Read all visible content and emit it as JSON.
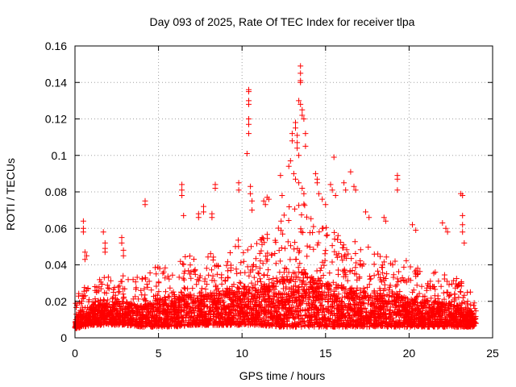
{
  "chart_data": {
    "type": "scatter",
    "title": "Day 093 of 2025, Rate Of TEC Index for receiver tlpa",
    "xlabel": "GPS time / hours",
    "ylabel": "ROTI / TECUs",
    "xlim": [
      0,
      25
    ],
    "ylim": [
      0,
      0.16
    ],
    "x_ticks": [
      0,
      5,
      10,
      15,
      20,
      25
    ],
    "y_ticks": [
      0,
      0.02,
      0.04,
      0.06,
      0.08,
      0.1,
      0.12,
      0.14,
      0.16
    ],
    "x_tick_labels": [
      "0",
      "5",
      "10",
      "15",
      "20",
      "25"
    ],
    "y_tick_labels": [
      "0",
      "0.02",
      "0.04",
      "0.06",
      "0.08",
      "0.1",
      "0.12",
      "0.14",
      "0.16"
    ],
    "grid": true,
    "marker": "+",
    "color": "#ff0000",
    "series": [
      {
        "name": "ROTI",
        "points": [
          [
            0.5,
            0.064
          ],
          [
            0.5,
            0.06
          ],
          [
            0.5,
            0.058
          ],
          [
            0.6,
            0.047
          ],
          [
            0.6,
            0.043
          ],
          [
            0.7,
            0.045
          ],
          [
            1.7,
            0.058
          ],
          [
            1.8,
            0.052
          ],
          [
            1.8,
            0.049
          ],
          [
            1.8,
            0.047
          ],
          [
            2.8,
            0.055
          ],
          [
            2.8,
            0.052
          ],
          [
            2.9,
            0.048
          ],
          [
            2.9,
            0.045
          ],
          [
            4.2,
            0.075
          ],
          [
            4.2,
            0.073
          ],
          [
            6.4,
            0.084
          ],
          [
            6.4,
            0.081
          ],
          [
            6.4,
            0.078
          ],
          [
            6.5,
            0.067
          ],
          [
            7.4,
            0.068
          ],
          [
            7.4,
            0.066
          ],
          [
            7.7,
            0.072
          ],
          [
            7.7,
            0.069
          ],
          [
            8.2,
            0.068
          ],
          [
            8.2,
            0.066
          ],
          [
            8.4,
            0.084
          ],
          [
            8.4,
            0.082
          ],
          [
            9.8,
            0.085
          ],
          [
            9.8,
            0.081
          ],
          [
            10.3,
            0.101
          ],
          [
            10.4,
            0.136
          ],
          [
            10.4,
            0.135
          ],
          [
            10.4,
            0.13
          ],
          [
            10.4,
            0.128
          ],
          [
            10.4,
            0.12
          ],
          [
            10.4,
            0.117
          ],
          [
            10.4,
            0.112
          ],
          [
            10.5,
            0.083
          ],
          [
            10.5,
            0.079
          ],
          [
            10.6,
            0.075
          ],
          [
            10.6,
            0.07
          ],
          [
            11.3,
            0.075
          ],
          [
            11.4,
            0.073
          ],
          [
            11.5,
            0.077
          ],
          [
            11.6,
            0.076
          ],
          [
            12.3,
            0.089
          ],
          [
            12.4,
            0.078
          ],
          [
            12.8,
            0.094
          ],
          [
            12.9,
            0.097
          ],
          [
            13.0,
            0.108
          ],
          [
            13.0,
            0.112
          ],
          [
            13.2,
            0.118
          ],
          [
            13.2,
            0.115
          ],
          [
            13.3,
            0.111
          ],
          [
            13.3,
            0.107
          ],
          [
            13.3,
            0.104
          ],
          [
            13.4,
            0.1
          ],
          [
            13.4,
            0.13
          ],
          [
            13.5,
            0.128
          ],
          [
            13.5,
            0.149
          ],
          [
            13.5,
            0.145
          ],
          [
            13.5,
            0.141
          ],
          [
            13.5,
            0.14
          ],
          [
            13.6,
            0.125
          ],
          [
            13.6,
            0.122
          ],
          [
            13.7,
            0.12
          ],
          [
            13.8,
            0.112
          ],
          [
            13.8,
            0.105
          ],
          [
            13.1,
            0.09
          ],
          [
            13.2,
            0.087
          ],
          [
            13.4,
            0.085
          ],
          [
            13.6,
            0.082
          ],
          [
            13.7,
            0.079
          ],
          [
            14.4,
            0.09
          ],
          [
            14.5,
            0.087
          ],
          [
            14.5,
            0.085
          ],
          [
            14.6,
            0.079
          ],
          [
            14.8,
            0.076
          ],
          [
            15.0,
            0.073
          ],
          [
            15.3,
            0.084
          ],
          [
            15.4,
            0.081
          ],
          [
            15.5,
            0.099
          ],
          [
            15.6,
            0.078
          ],
          [
            16.1,
            0.085
          ],
          [
            16.2,
            0.081
          ],
          [
            16.5,
            0.091
          ],
          [
            16.7,
            0.083
          ],
          [
            16.8,
            0.081
          ],
          [
            17.4,
            0.069
          ],
          [
            17.6,
            0.066
          ],
          [
            18.5,
            0.066
          ],
          [
            18.6,
            0.064
          ],
          [
            19.3,
            0.089
          ],
          [
            19.3,
            0.087
          ],
          [
            19.3,
            0.081
          ],
          [
            20.2,
            0.062
          ],
          [
            20.4,
            0.059
          ],
          [
            22.0,
            0.063
          ],
          [
            22.2,
            0.06
          ],
          [
            22.3,
            0.058
          ],
          [
            23.1,
            0.079
          ],
          [
            23.2,
            0.078
          ],
          [
            23.2,
            0.067
          ],
          [
            23.2,
            0.062
          ],
          [
            23.2,
            0.058
          ],
          [
            23.3,
            0.052
          ]
        ]
      }
    ],
    "dense_band": {
      "note": "Dense cloud of many thousands of ROTI points across the full day",
      "x_range": [
        0,
        24
      ],
      "profile": [
        [
          0.0,
          0.005,
          0.022
        ],
        [
          1.0,
          0.007,
          0.032
        ],
        [
          2.0,
          0.007,
          0.034
        ],
        [
          3.0,
          0.007,
          0.036
        ],
        [
          4.0,
          0.006,
          0.033
        ],
        [
          5.0,
          0.006,
          0.042
        ],
        [
          6.0,
          0.006,
          0.044
        ],
        [
          7.0,
          0.007,
          0.045
        ],
        [
          8.0,
          0.007,
          0.047
        ],
        [
          9.0,
          0.007,
          0.05
        ],
        [
          10.0,
          0.007,
          0.055
        ],
        [
          11.0,
          0.007,
          0.055
        ],
        [
          12.0,
          0.006,
          0.062
        ],
        [
          13.0,
          0.006,
          0.075
        ],
        [
          13.5,
          0.006,
          0.08
        ],
        [
          14.0,
          0.006,
          0.068
        ],
        [
          15.0,
          0.006,
          0.062
        ],
        [
          16.0,
          0.006,
          0.056
        ],
        [
          17.0,
          0.006,
          0.052
        ],
        [
          18.0,
          0.006,
          0.048
        ],
        [
          19.0,
          0.006,
          0.045
        ],
        [
          20.0,
          0.006,
          0.042
        ],
        [
          21.0,
          0.006,
          0.038
        ],
        [
          22.0,
          0.006,
          0.036
        ],
        [
          23.0,
          0.006,
          0.032
        ],
        [
          24.0,
          0.006,
          0.022
        ]
      ]
    }
  }
}
